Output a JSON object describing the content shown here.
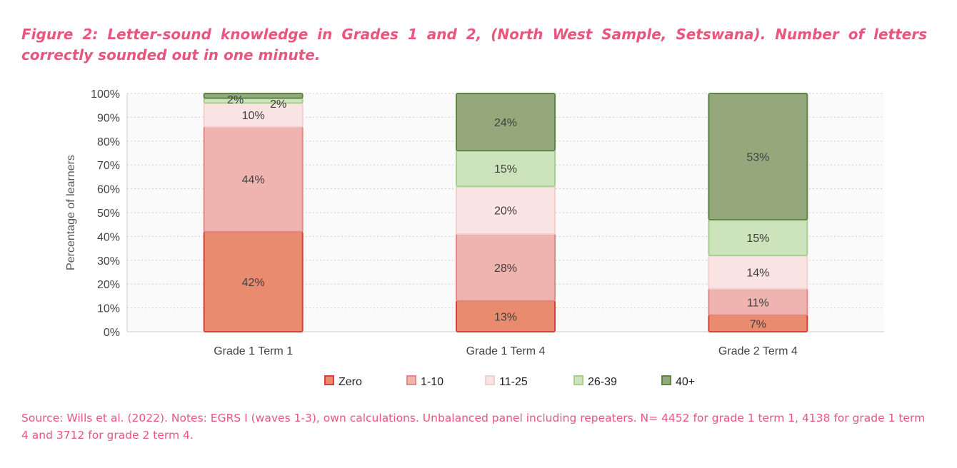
{
  "title": "Figure 2: Letter-sound knowledge in Grades 1 and 2, (North West Sample, Setswana). Number of letters correctly sounded out in one minute.",
  "source": "Source: Wills et al. (2022). Notes: EGRS I (waves 1-3), own calculations. Unbalanced panel including repeaters. N= 4452 for grade 1 term 1, 4138 for grade 1 term 4 and 3712 for grade 2 term 4.",
  "chart_data": {
    "type": "bar",
    "stacked": true,
    "categories": [
      "Grade 1 Term 1",
      "Grade 1 Term 4",
      "Grade 2 Term 4"
    ],
    "ylabel": "Percentage of learners",
    "xlabel": "",
    "ylim": [
      0,
      100
    ],
    "yticks": [
      "0%",
      "10%",
      "20%",
      "30%",
      "40%",
      "50%",
      "60%",
      "70%",
      "80%",
      "90%",
      "100%"
    ],
    "grid": true,
    "legend_position": "bottom",
    "series": [
      {
        "name": "Zero",
        "values": [
          42,
          13,
          7
        ],
        "labels": [
          "42%",
          "13%",
          "7%"
        ],
        "fill": "#e98b6e",
        "stroke": "#d8403a"
      },
      {
        "name": "1-10",
        "values": [
          44,
          28,
          11
        ],
        "labels": [
          "44%",
          "28%",
          "11%"
        ],
        "fill": "#efb4b0",
        "stroke": "#e48a86"
      },
      {
        "name": "11-25",
        "values": [
          10,
          20,
          14
        ],
        "labels": [
          "10%",
          "20%",
          "14%"
        ],
        "fill": "#fae3e3",
        "stroke": "#f4cfcf"
      },
      {
        "name": "26-39",
        "values": [
          2,
          15,
          15
        ],
        "labels": [
          "2%",
          "15%",
          "15%"
        ],
        "fill": "#cde3bb",
        "stroke": "#a9ce92"
      },
      {
        "name": "40+",
        "values": [
          2,
          24,
          53
        ],
        "labels": [
          "2%",
          "24%",
          "53%"
        ],
        "fill": "#94a87c",
        "stroke": "#5e8745"
      }
    ]
  }
}
